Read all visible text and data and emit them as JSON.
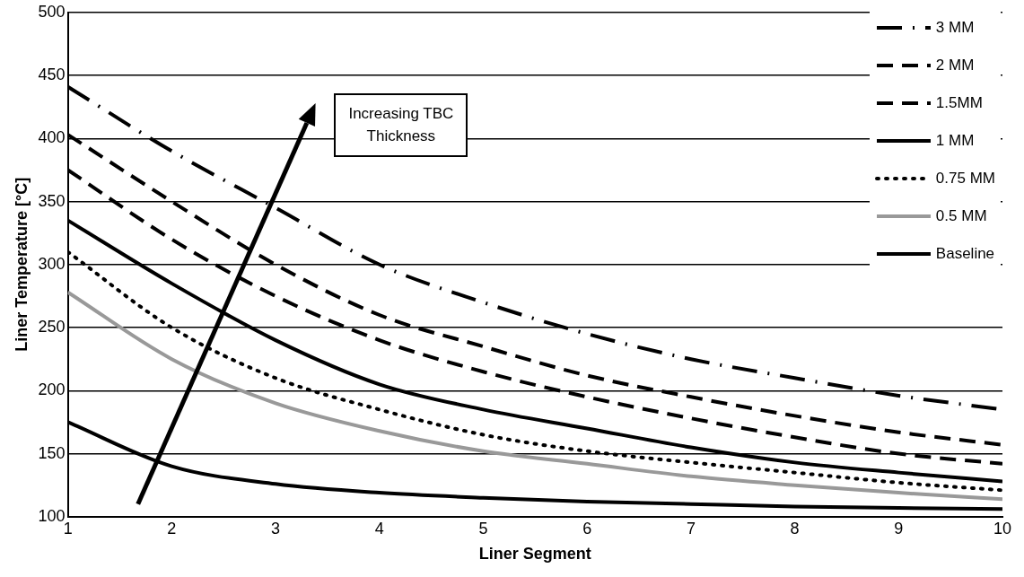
{
  "chart_data": {
    "type": "line",
    "xlabel": "Liner Segment",
    "ylabel": "Liner Temperature [°C]",
    "x": [
      1,
      2,
      3,
      4,
      5,
      6,
      7,
      8,
      9,
      10
    ],
    "series": [
      {
        "name": "3 MM",
        "color": "#000000",
        "line_style": "dashdot",
        "values": [
          441,
          390,
          345,
          300,
          270,
          245,
          225,
          210,
          196,
          185
        ]
      },
      {
        "name": "2 MM",
        "color": "#000000",
        "line_style": "dashed",
        "values": [
          403,
          350,
          300,
          260,
          235,
          212,
          195,
          180,
          167,
          157
        ]
      },
      {
        "name": "1.5MM",
        "color": "#000000",
        "line_style": "dashed",
        "values": [
          375,
          320,
          275,
          240,
          215,
          195,
          178,
          163,
          150,
          142
        ]
      },
      {
        "name": "1 MM",
        "color": "#000000",
        "line_style": "solid",
        "values": [
          335,
          285,
          240,
          205,
          185,
          170,
          155,
          143,
          135,
          128
        ]
      },
      {
        "name": "0.75 MM",
        "color": "#000000",
        "line_style": "dotted",
        "values": [
          310,
          250,
          210,
          185,
          165,
          152,
          143,
          135,
          127,
          121
        ]
      },
      {
        "name": "0.5 MM",
        "color": "#999999",
        "line_style": "solid",
        "values": [
          278,
          225,
          190,
          168,
          152,
          142,
          132,
          125,
          119,
          114
        ]
      },
      {
        "name": "Baseline",
        "color": "#000000",
        "line_style": "solid",
        "values": [
          175,
          140,
          126,
          119,
          115,
          112,
          110,
          108,
          107,
          106
        ]
      }
    ],
    "xlim": [
      1,
      10
    ],
    "xticks": [
      1,
      2,
      3,
      4,
      5,
      6,
      7,
      8,
      9,
      10
    ],
    "ylim": [
      100,
      500
    ],
    "yticks": [
      100,
      150,
      200,
      250,
      300,
      350,
      400,
      450,
      500
    ],
    "grid": "y",
    "legend": "top right",
    "marker": "none",
    "annotations": [
      "Increasing TBC Thickness"
    ]
  }
}
